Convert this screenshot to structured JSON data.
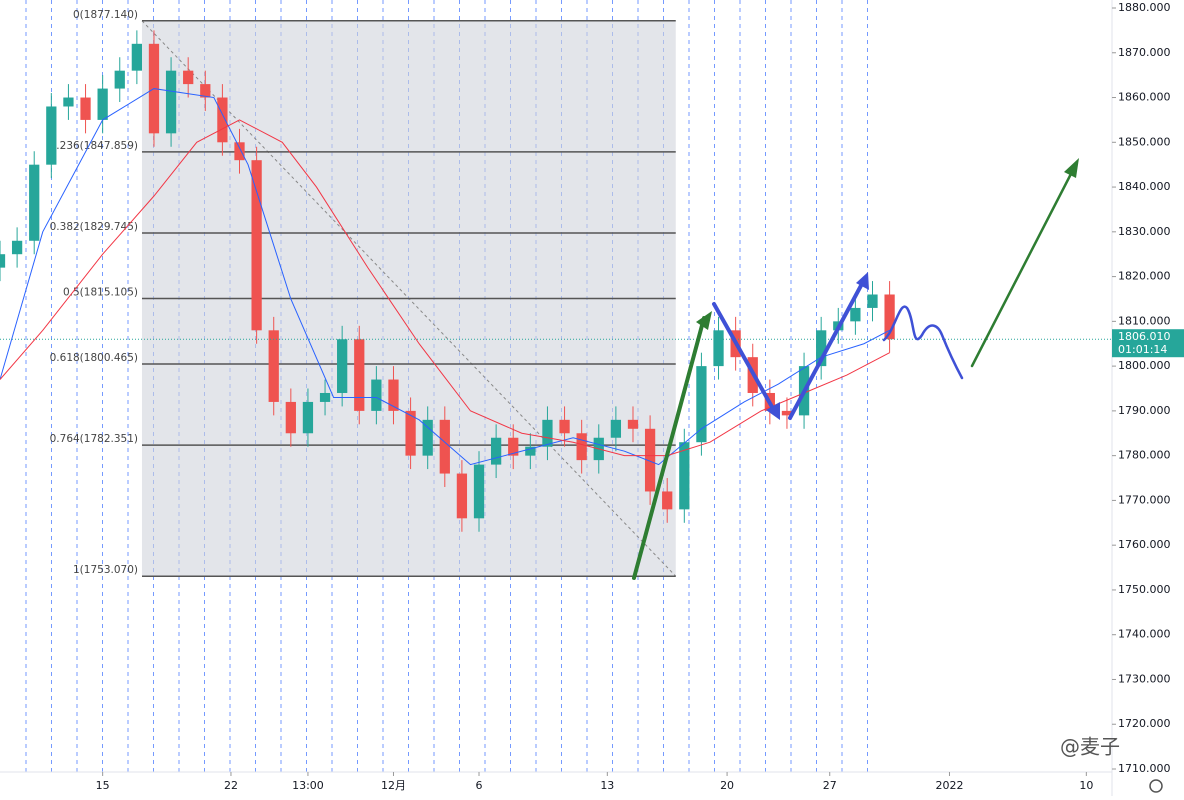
{
  "chart_data": {
    "type": "candlestick",
    "x": [
      0,
      2,
      4,
      6,
      8,
      10,
      12,
      14,
      16,
      18,
      20,
      22,
      24,
      26,
      28,
      30,
      32,
      34,
      36,
      38,
      40,
      42,
      44,
      46,
      48,
      50,
      52,
      54,
      56,
      58,
      60,
      62,
      64,
      66,
      68,
      70,
      72,
      74,
      76,
      78,
      80,
      82,
      84,
      86,
      88,
      90,
      92,
      94,
      96,
      98,
      100,
      102,
      104
    ],
    "open": [
      1822,
      1825,
      1828,
      1845,
      1858,
      1860,
      1855,
      1862,
      1866,
      1872,
      1852,
      1866,
      1863,
      1860,
      1850,
      1846,
      1808,
      1792,
      1785,
      1792,
      1794,
      1806,
      1790,
      1797,
      1790,
      1780,
      1788,
      1776,
      1766,
      1778,
      1784,
      1780,
      1782,
      1788,
      1785,
      1779,
      1784,
      1788,
      1786,
      1772,
      1768,
      1783,
      1800,
      1808,
      1802,
      1794,
      1790,
      1789,
      1800,
      1808,
      1810,
      1813,
      1816
    ],
    "high": [
      1828,
      1831,
      1848,
      1861,
      1863,
      1863,
      1865,
      1869,
      1875,
      1875,
      1869,
      1869,
      1866,
      1863,
      1853,
      1849,
      1811,
      1795,
      1795,
      1797,
      1809,
      1809,
      1800,
      1800,
      1793,
      1791,
      1791,
      1779,
      1781,
      1787,
      1787,
      1785,
      1791,
      1791,
      1788,
      1787,
      1791,
      1791,
      1789,
      1775,
      1786,
      1803,
      1811,
      1811,
      1805,
      1797,
      1793,
      1803,
      1811,
      1813,
      1816,
      1819,
      1819
    ],
    "low": [
      1819,
      1822,
      1825,
      1842,
      1855,
      1852,
      1852,
      1859,
      1863,
      1849,
      1849,
      1860,
      1857,
      1847,
      1843,
      1805,
      1789,
      1782,
      1782,
      1789,
      1791,
      1787,
      1787,
      1787,
      1777,
      1777,
      1773,
      1763,
      1763,
      1775,
      1777,
      1777,
      1779,
      1782,
      1776,
      1776,
      1781,
      1783,
      1769,
      1765,
      1765,
      1780,
      1797,
      1799,
      1791,
      1787,
      1786,
      1786,
      1797,
      1805,
      1807,
      1810,
      1803
    ],
    "close": [
      1825,
      1828,
      1845,
      1858,
      1860,
      1855,
      1862,
      1866,
      1872,
      1852,
      1866,
      1863,
      1860,
      1850,
      1846,
      1808,
      1792,
      1785,
      1792,
      1794,
      1806,
      1790,
      1797,
      1790,
      1780,
      1788,
      1776,
      1766,
      1778,
      1784,
      1780,
      1782,
      1788,
      1785,
      1779,
      1784,
      1788,
      1786,
      1772,
      1768,
      1783,
      1800,
      1808,
      1802,
      1794,
      1790,
      1789,
      1800,
      1808,
      1810,
      1813,
      1816,
      1806
    ],
    "up_color": "#26a69a",
    "down_color": "#ef5350",
    "series": [
      {
        "color": "#2962ff",
        "x": [
          0,
          5,
          12,
          18,
          25,
          29,
          34,
          39,
          44,
          49,
          55,
          61,
          67,
          73,
          77,
          82,
          87,
          91,
          96,
          101,
          104
        ],
        "values": [
          1797,
          1830,
          1855,
          1862,
          1860,
          1845,
          1815,
          1793,
          1793,
          1788,
          1778,
          1781,
          1784,
          1781,
          1778,
          1786,
          1792,
          1796,
          1802,
          1805,
          1808
        ]
      },
      {
        "color": "#f23645",
        "x": [
          0,
          5,
          12,
          18,
          23,
          28,
          33,
          37,
          43,
          49,
          55,
          61,
          67,
          73,
          78,
          83,
          89,
          94,
          99,
          104
        ],
        "values": [
          1797,
          1808,
          1825,
          1838,
          1850,
          1855,
          1850,
          1840,
          1822,
          1805,
          1790,
          1785,
          1783,
          1780,
          1780,
          1783,
          1790,
          1794,
          1798,
          1803
        ]
      }
    ],
    "fib": [
      {
        "label": "0(1877.140)",
        "value": 1877.14
      },
      {
        "label": "0.236(1847.859)",
        "value": 1847.859
      },
      {
        "label": "0.382(1829.745)",
        "value": 1829.745
      },
      {
        "label": "0.5(1815.105)",
        "value": 1815.105
      },
      {
        "label": "0.618(1800.465)",
        "value": 1800.465
      },
      {
        "label": "0.764(1782.351)",
        "value": 1782.351
      },
      {
        "label": "1(1753.070)",
        "value": 1753.07
      }
    ],
    "fib_x": [
      16.6,
      79
    ],
    "last_price": {
      "value": 1806.01,
      "label": "1806.010",
      "countdown": "01:01:14"
    },
    "xlim": [
      0,
      130
    ],
    "xticks": [
      {
        "value": 12,
        "label": "15"
      },
      {
        "value": 27,
        "label": "22"
      },
      {
        "value": 36,
        "label": "13:00"
      },
      {
        "value": 46,
        "label": "12月"
      },
      {
        "value": 56,
        "label": "6"
      },
      {
        "value": 71,
        "label": "13"
      },
      {
        "value": 85,
        "label": "20"
      },
      {
        "value": 97,
        "label": "27"
      },
      {
        "value": 111,
        "label": "2022"
      },
      {
        "value": 127,
        "label": "10"
      }
    ],
    "ylim": [
      1710,
      1880
    ],
    "yticks": [
      {
        "value": 1710,
        "label": "1710.000"
      },
      {
        "value": 1720,
        "label": "1720.000"
      },
      {
        "value": 1730,
        "label": "1730.000"
      },
      {
        "value": 1740,
        "label": "1740.000"
      },
      {
        "value": 1750,
        "label": "1750.000"
      },
      {
        "value": 1760,
        "label": "1760.000"
      },
      {
        "value": 1770,
        "label": "1770.000"
      },
      {
        "value": 1780,
        "label": "1780.000"
      },
      {
        "value": 1790,
        "label": "1790.000"
      },
      {
        "value": 1800,
        "label": "1800.000"
      },
      {
        "value": 1810,
        "label": "1810.000"
      },
      {
        "value": 1820,
        "label": "1820.000"
      },
      {
        "value": 1830,
        "label": "1830.000"
      },
      {
        "value": 1840,
        "label": "1840.000"
      },
      {
        "value": 1850,
        "label": "1850.000"
      },
      {
        "value": 1860,
        "label": "1860.000"
      },
      {
        "value": 1870,
        "label": "1870.000"
      },
      {
        "value": 1880,
        "label": "1880.000"
      }
    ],
    "watermark": "@麦子"
  }
}
